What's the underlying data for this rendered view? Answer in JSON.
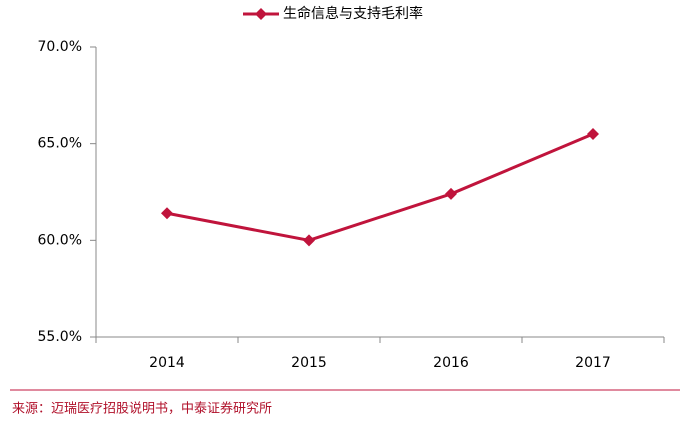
{
  "chart_data": {
    "type": "line",
    "categories": [
      "2014",
      "2015",
      "2016",
      "2017"
    ],
    "series": [
      {
        "name": "生命信息与支持毛利率",
        "color": "#c0143c",
        "values": [
          61.4,
          60.0,
          62.4,
          65.5
        ]
      }
    ],
    "ylim": [
      55,
      70
    ],
    "yticks": [
      {
        "value": 55,
        "label": "55.0%"
      },
      {
        "value": 60,
        "label": "60.0%"
      },
      {
        "value": 65,
        "label": "65.0%"
      },
      {
        "value": 70,
        "label": "70.0%"
      }
    ],
    "legend": "top",
    "source": "来源：迈瑞医疗招股说明书，中泰证券研究所"
  }
}
